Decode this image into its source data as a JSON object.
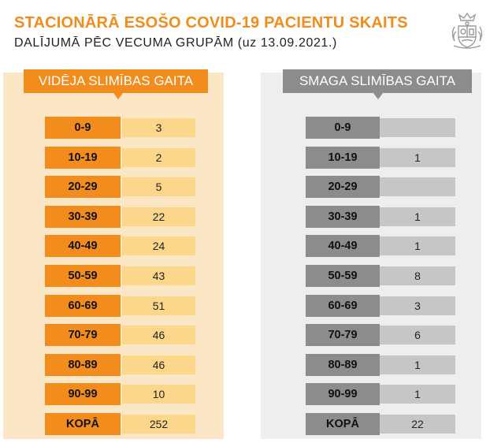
{
  "title": "STACIONĀRĀ ESOŠO COVID-19 PACIENTU SKAITS",
  "subtitle": "DALĪJUMĀ PĒC VECUMA GRUPĀM (uz 13.09.2021.)",
  "emblem_icon": "latvia-coat-of-arms-icon",
  "colors": {
    "accent_orange": "#f28c1c",
    "light_orange": "#fcd68a",
    "panel_orange": "#fbe7c5",
    "gray": "#8c8c8c",
    "light_gray": "#c6c6c6",
    "panel_gray": "#eeeeee"
  },
  "moderate": {
    "header": "VIDĒJA SLIMĪBAS GAITA",
    "rows": [
      {
        "age": "0-9",
        "count": "3"
      },
      {
        "age": "10-19",
        "count": "2"
      },
      {
        "age": "20-29",
        "count": "5"
      },
      {
        "age": "30-39",
        "count": "22"
      },
      {
        "age": "40-49",
        "count": "24"
      },
      {
        "age": "50-59",
        "count": "43"
      },
      {
        "age": "60-69",
        "count": "51"
      },
      {
        "age": "70-79",
        "count": "46"
      },
      {
        "age": "80-89",
        "count": "46"
      },
      {
        "age": "90-99",
        "count": "10"
      },
      {
        "age": "KOPĀ",
        "count": "252"
      }
    ]
  },
  "severe": {
    "header": "SMAGA SLIMĪBAS GAITA",
    "rows": [
      {
        "age": "0-9",
        "count": ""
      },
      {
        "age": "10-19",
        "count": "1"
      },
      {
        "age": "20-29",
        "count": ""
      },
      {
        "age": "30-39",
        "count": "1"
      },
      {
        "age": "40-49",
        "count": "1"
      },
      {
        "age": "50-59",
        "count": "8"
      },
      {
        "age": "60-69",
        "count": "3"
      },
      {
        "age": "70-79",
        "count": "6"
      },
      {
        "age": "80-89",
        "count": "1"
      },
      {
        "age": "90-99",
        "count": "1"
      },
      {
        "age": "KOPĀ",
        "count": "22"
      }
    ]
  }
}
